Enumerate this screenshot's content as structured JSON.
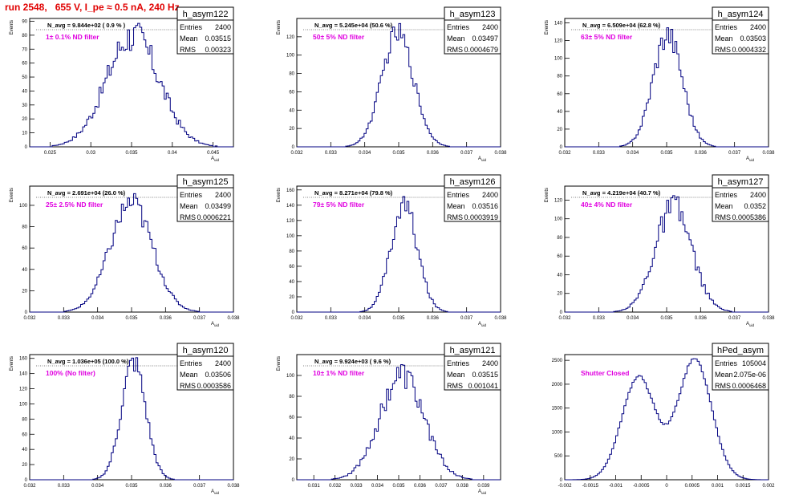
{
  "run_title": "run 2548,   655 V, I_pe ≈ 0.5 nA, 240 Hz",
  "colors": {
    "hist_line": "#000080",
    "filter_label": "#e000e0",
    "title": "#e00000",
    "frame": "#000000"
  },
  "chart_data": [
    {
      "type": "histogram",
      "name": "h_asym122",
      "stats": {
        "entries_label": "Entries",
        "entries": "2400",
        "mean_label": "Mean",
        "mean": "0.03515",
        "rms_label": "RMS",
        "rms": "0.00323"
      },
      "navg": "N_avg = 9.844e+02 ( 0.9 % )",
      "filter": "1± 0.1% ND filter",
      "ylabel": "Events",
      "xlabel": "A_uid",
      "xlim": [
        0.0225,
        0.0475
      ],
      "ylim": [
        0,
        92
      ],
      "xticks": [
        0.025,
        0.03,
        0.035,
        0.04,
        0.045
      ],
      "xticklabels": [
        "0.025",
        "0.03",
        "0.035",
        "0.04",
        "0.045"
      ],
      "yticks": [
        0,
        10,
        20,
        30,
        40,
        50,
        60,
        70,
        80,
        90
      ],
      "mean": 0.03515,
      "rms": 0.00323,
      "peak": 80,
      "noise": 0.16,
      "nbins": 100
    },
    {
      "type": "histogram",
      "name": "h_asym123",
      "stats": {
        "entries_label": "Entries",
        "entries": "2400",
        "mean_label": "Mean",
        "mean": "0.03497",
        "rms_label": "RMS",
        "rms": "0.0004679"
      },
      "navg": "N_avg = 5.245e+04 (50.6 %)",
      "filter": "50± 5% ND filter",
      "ylabel": "Events",
      "xlabel": "A_uid",
      "xlim": [
        0.032,
        0.038
      ],
      "ylim": [
        0,
        140
      ],
      "xticks": [
        0.032,
        0.033,
        0.034,
        0.035,
        0.036,
        0.037,
        0.038
      ],
      "xticklabels": [
        "0.032",
        "0.033",
        "0.034",
        "0.035",
        "0.036",
        "0.037",
        "0.038"
      ],
      "yticks": [
        0,
        20,
        40,
        60,
        80,
        100,
        120
      ],
      "mean": 0.03497,
      "rms": 0.0004679,
      "peak": 124,
      "noise": 0.1,
      "nbins": 100
    },
    {
      "type": "histogram",
      "name": "h_asym124",
      "stats": {
        "entries_label": "Entries",
        "entries": "2400",
        "mean_label": "Mean",
        "mean": "0.03503",
        "rms_label": "RMS",
        "rms": "0.0004332"
      },
      "navg": "N_avg = 6.509e+04 (62.8 %)",
      "filter": "63± 5% ND filter",
      "ylabel": "Events",
      "xlabel": "A_uid",
      "xlim": [
        0.032,
        0.038
      ],
      "ylim": [
        0,
        145
      ],
      "xticks": [
        0.032,
        0.033,
        0.034,
        0.035,
        0.036,
        0.037,
        0.038
      ],
      "xticklabels": [
        "0.032",
        "0.033",
        "0.034",
        "0.035",
        "0.036",
        "0.037",
        "0.038"
      ],
      "yticks": [
        0,
        20,
        40,
        60,
        80,
        100,
        120,
        140
      ],
      "mean": 0.03503,
      "rms": 0.0004332,
      "peak": 128,
      "noise": 0.12,
      "nbins": 100
    },
    {
      "type": "histogram",
      "name": "h_asym125",
      "stats": {
        "entries_label": "Entries",
        "entries": "2400",
        "mean_label": "Mean",
        "mean": "0.03499",
        "rms_label": "RMS",
        "rms": "0.0006221"
      },
      "navg": "N_avg = 2.691e+04 (26.0 %)",
      "filter": "25± 2.5% ND filter",
      "ylabel": "Events",
      "xlabel": "A_uid",
      "xlim": [
        0.032,
        0.038
      ],
      "ylim": [
        0,
        118
      ],
      "xticks": [
        0.032,
        0.033,
        0.034,
        0.035,
        0.036,
        0.037,
        0.038
      ],
      "xticklabels": [
        "0.032",
        "0.033",
        "0.034",
        "0.035",
        "0.036",
        "0.037",
        "0.038"
      ],
      "yticks": [
        0,
        20,
        40,
        60,
        80,
        100
      ],
      "mean": 0.03499,
      "rms": 0.0006221,
      "peak": 102,
      "noise": 0.12,
      "nbins": 100
    },
    {
      "type": "histogram",
      "name": "h_asym126",
      "stats": {
        "entries_label": "Entries",
        "entries": "2400",
        "mean_label": "Mean",
        "mean": "0.03516",
        "rms_label": "RMS",
        "rms": "0.0003919"
      },
      "navg": "N_avg = 8.271e+04 (79.8 %)",
      "filter": "79± 5% ND filter",
      "ylabel": "Events",
      "xlabel": "A_uid",
      "xlim": [
        0.032,
        0.038
      ],
      "ylim": [
        0,
        165
      ],
      "xticks": [
        0.032,
        0.033,
        0.034,
        0.035,
        0.036,
        0.037,
        0.038
      ],
      "xticklabels": [
        "0.032",
        "0.033",
        "0.034",
        "0.035",
        "0.036",
        "0.037",
        "0.038"
      ],
      "yticks": [
        0,
        20,
        40,
        60,
        80,
        100,
        120,
        140,
        160
      ],
      "mean": 0.03516,
      "rms": 0.0003919,
      "peak": 140,
      "noise": 0.12,
      "nbins": 100
    },
    {
      "type": "histogram",
      "name": "h_asym127",
      "stats": {
        "entries_label": "Entries",
        "entries": "2400",
        "mean_label": "Mean",
        "mean": "0.0352",
        "rms_label": "RMS",
        "rms": "0.0005386"
      },
      "navg": "N_avg = 4.219e+04 (40.7 %)",
      "filter": "40± 4% ND filter",
      "ylabel": "Events",
      "xlabel": "A_uid",
      "xlim": [
        0.032,
        0.038
      ],
      "ylim": [
        0,
        135
      ],
      "xticks": [
        0.032,
        0.033,
        0.034,
        0.035,
        0.036,
        0.037,
        0.038
      ],
      "xticklabels": [
        "0.032",
        "0.033",
        "0.034",
        "0.035",
        "0.036",
        "0.037",
        "0.038"
      ],
      "yticks": [
        0,
        20,
        40,
        60,
        80,
        100,
        120
      ],
      "mean": 0.0352,
      "rms": 0.0005386,
      "peak": 112,
      "noise": 0.14,
      "nbins": 100
    },
    {
      "type": "histogram",
      "name": "h_asym120",
      "stats": {
        "entries_label": "Entries",
        "entries": "2400",
        "mean_label": "Mean",
        "mean": "0.03506",
        "rms_label": "RMS",
        "rms": "0.0003586"
      },
      "navg": "N_avg = 1.036e+05 (100.0 %)",
      "filter": "100% (No filter)",
      "ylabel": "Events",
      "xlabel": "A_uid",
      "xlim": [
        0.032,
        0.038
      ],
      "ylim": [
        0,
        165
      ],
      "xticks": [
        0.032,
        0.033,
        0.034,
        0.035,
        0.036,
        0.037,
        0.038
      ],
      "xticklabels": [
        "0.032",
        "0.033",
        "0.034",
        "0.035",
        "0.036",
        "0.037",
        "0.038"
      ],
      "yticks": [
        0,
        20,
        40,
        60,
        80,
        100,
        120,
        140,
        160
      ],
      "mean": 0.03506,
      "rms": 0.0003586,
      "peak": 155,
      "noise": 0.1,
      "nbins": 100
    },
    {
      "type": "histogram",
      "name": "h_asym121",
      "stats": {
        "entries_label": "Entries",
        "entries": "2400",
        "mean_label": "Mean",
        "mean": "0.03515",
        "rms_label": "RMS",
        "rms": "0.001041"
      },
      "navg": "N_avg = 9.924e+03 ( 9.6 %)",
      "filter": "10± 1% ND filter",
      "ylabel": "Events",
      "xlabel": "A_uid",
      "xlim": [
        0.0302,
        0.0398
      ],
      "ylim": [
        0,
        120
      ],
      "xticks": [
        0.031,
        0.032,
        0.033,
        0.034,
        0.035,
        0.036,
        0.037,
        0.038,
        0.039
      ],
      "xticklabels": [
        "0.031",
        "0.032",
        "0.033",
        "0.034",
        "0.035",
        "0.036",
        "0.037",
        "0.038",
        "0.039"
      ],
      "yticks": [
        0,
        20,
        40,
        60,
        80,
        100
      ],
      "mean": 0.03515,
      "rms": 0.001041,
      "peak": 100,
      "noise": 0.14,
      "nbins": 100
    },
    {
      "type": "histogram",
      "name": "hPed_asym",
      "stats": {
        "entries_label": "Entries",
        "entries": "105004",
        "mean_label": "Mean",
        "mean": "2.075e-06",
        "rms_label": "RMS",
        "rms": "0.0006468"
      },
      "navg": "",
      "filter": "Shutter Closed",
      "ylabel": "",
      "xlabel": "",
      "xlim": [
        -0.002,
        0.002
      ],
      "ylim": [
        0,
        2620
      ],
      "xticks": [
        -0.002,
        -0.0015,
        -0.001,
        -0.0005,
        0,
        0.0005,
        0.001,
        0.0015,
        0.002
      ],
      "xticklabels": [
        "-0.002",
        "-0.0015",
        "-0.001",
        "-0.0005",
        "0",
        "0.0005",
        "0.001",
        "0.0015",
        "0.002"
      ],
      "yticks": [
        0,
        500,
        1000,
        1500,
        2000,
        2500
      ],
      "bimodal": {
        "centers": [
          -0.00055,
          0.00055
        ],
        "sigma": 0.00033,
        "amplitudes": [
          2150,
          2520
        ]
      },
      "noise": 0.015,
      "nbins": 100
    }
  ]
}
